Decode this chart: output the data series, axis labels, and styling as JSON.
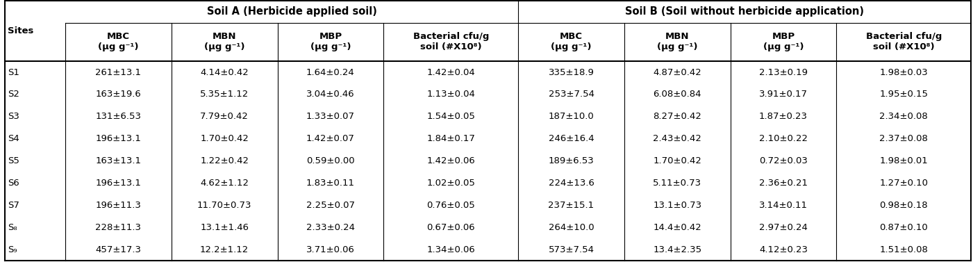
{
  "title_a": "Soil A (Herbicide applied soil)",
  "title_b": "Soil B (Soil without herbicide application)",
  "sites": [
    "S1",
    "S2",
    "S3",
    "S4",
    "S5",
    "S6",
    "S7",
    "S₈",
    "S₉"
  ],
  "soil_a": [
    [
      "261±13.1",
      "4.14±0.42",
      "1.64±0.24",
      "1.42±0.04"
    ],
    [
      "163±19.6",
      "5.35±1.12",
      "3.04±0.46",
      "1.13±0.04"
    ],
    [
      "131±6.53",
      "7.79±0.42",
      "1.33±0.07",
      "1.54±0.05"
    ],
    [
      "196±13.1",
      "1.70±0.42",
      "1.42±0.07",
      "1.84±0.17"
    ],
    [
      "163±13.1",
      "1.22±0.42",
      "0.59±0.00",
      "1.42±0.06"
    ],
    [
      "196±13.1",
      "4.62±1.12",
      "1.83±0.11",
      "1.02±0.05"
    ],
    [
      "196±11.3",
      "11.70±0.73",
      "2.25±0.07",
      "0.76±0.05"
    ],
    [
      "228±11.3",
      "13.1±1.46",
      "2.33±0.24",
      "0.67±0.06"
    ],
    [
      "457±17.3",
      "12.2±1.12",
      "3.71±0.06",
      "1.34±0.06"
    ]
  ],
  "soil_b": [
    [
      "335±18.9",
      "4.87±0.42",
      "2.13±0.19",
      "1.98±0.03"
    ],
    [
      "253±7.54",
      "6.08±0.84",
      "3.91±0.17",
      "1.95±0.15"
    ],
    [
      "187±10.0",
      "8.27±0.42",
      "1.87±0.23",
      "2.34±0.08"
    ],
    [
      "246±16.4",
      "2.43±0.42",
      "2.10±0.22",
      "2.37±0.08"
    ],
    [
      "189±6.53",
      "1.70±0.42",
      "0.72±0.03",
      "1.98±0.01"
    ],
    [
      "224±13.6",
      "5.11±0.73",
      "2.36±0.21",
      "1.27±0.10"
    ],
    [
      "237±15.1",
      "13.1±0.73",
      "3.14±0.11",
      "0.98±0.18"
    ],
    [
      "264±10.0",
      "14.4±0.42",
      "2.97±0.24",
      "0.87±0.10"
    ],
    [
      "573±7.54",
      "13.4±2.35",
      "4.12±0.23",
      "1.51±0.08"
    ]
  ],
  "col_a_headers": [
    "MBC\n(μg g⁻¹)",
    "MBN\n(μg g⁻¹)",
    "MBP\n(μg g⁻¹)",
    "Bacterial cfu/g\nsoil (#X10⁸)"
  ],
  "col_b_headers": [
    "MBC\n(μg g⁻¹)",
    "MBN\n(μg g⁻¹)",
    "MBP\n(μg g⁻¹)",
    "Bacterial cfu/g\nsoil (#X10⁸)"
  ],
  "bg_color": "#ffffff",
  "text_color": "#000000",
  "header_fontsize": 9.5,
  "data_fontsize": 9.5,
  "title_fontsize": 10.5
}
